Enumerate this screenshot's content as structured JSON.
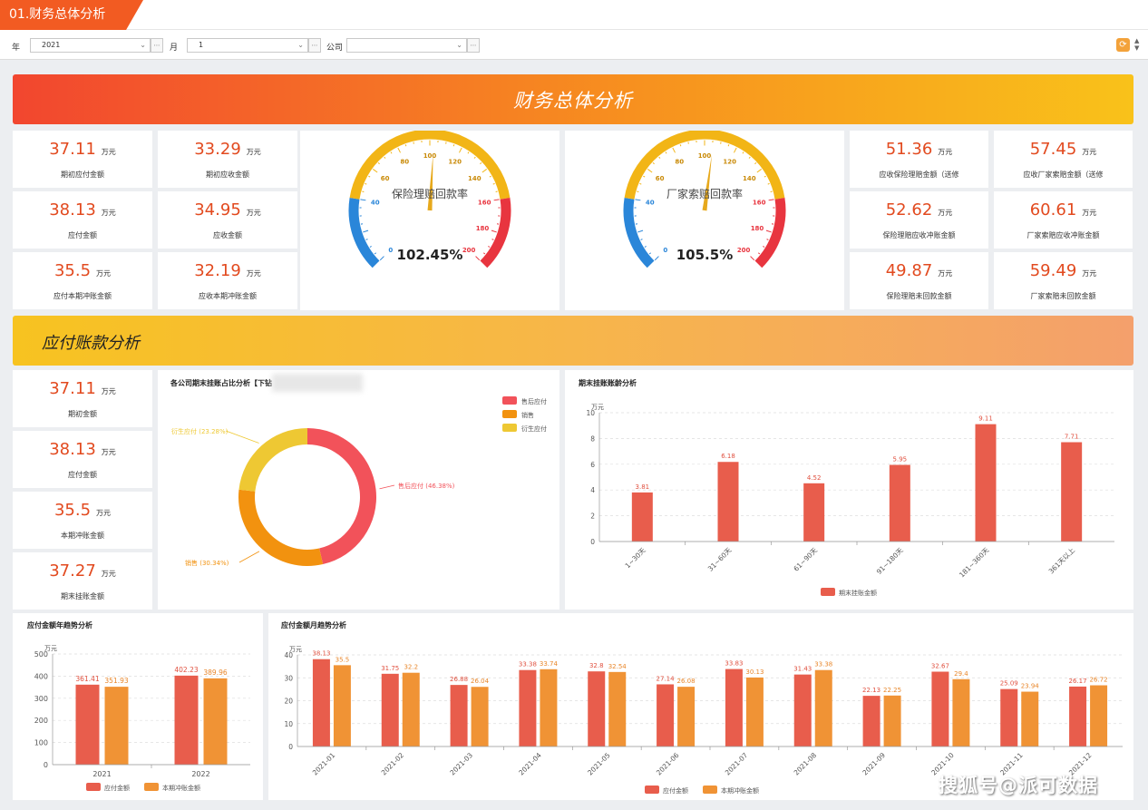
{
  "tab": {
    "label": "01.财务总体分析"
  },
  "filters": {
    "year_label": "年",
    "year_value": "2021",
    "month_label": "月",
    "month_value": "1",
    "company_label": "公司",
    "company_value": ""
  },
  "section1": {
    "title": "财务总体分析"
  },
  "section2": {
    "title": "应付账款分析"
  },
  "unit": "万元",
  "kpis_left": [
    {
      "value": "37.11",
      "label": "期初应付金额"
    },
    {
      "value": "33.29",
      "label": "期初应收金额"
    },
    {
      "value": "38.13",
      "label": "应付金额"
    },
    {
      "value": "34.95",
      "label": "应收金额"
    },
    {
      "value": "35.5",
      "label": "应付本期冲账金额"
    },
    {
      "value": "32.19",
      "label": "应收本期冲账金额"
    }
  ],
  "kpis_right": [
    {
      "value": "51.36",
      "label": "应收保险理赔金额（送修"
    },
    {
      "value": "57.45",
      "label": "应收厂家索赔金额（送修"
    },
    {
      "value": "52.62",
      "label": "保险理赔应收冲账金额"
    },
    {
      "value": "60.61",
      "label": "厂家索赔应收冲账金额"
    },
    {
      "value": "49.87",
      "label": "保险理赔未回款金额"
    },
    {
      "value": "59.49",
      "label": "厂家索赔未回款金额"
    }
  ],
  "kpis_payable": [
    {
      "value": "37.11",
      "label": "期初金额"
    },
    {
      "value": "38.13",
      "label": "应付金额"
    },
    {
      "value": "35.5",
      "label": "本期冲账金额"
    },
    {
      "value": "37.27",
      "label": "期末挂账金额"
    }
  ],
  "gauges": [
    {
      "title": "保险理赔回款率",
      "value": 102.45,
      "display": "102.45%",
      "ticks": [
        "0",
        "40",
        "60",
        "80",
        "100",
        "120",
        "140",
        "160",
        "180",
        "200"
      ]
    },
    {
      "title": "厂家索赔回款率",
      "value": 105.5,
      "display": "105.5%",
      "ticks": [
        "0",
        "40",
        "60",
        "80",
        "100",
        "120",
        "140",
        "160",
        "180",
        "200"
      ]
    }
  ],
  "colors": {
    "blue": "#2a86d9",
    "yellow": "#f2b516",
    "red": "#e8353f",
    "orange": "#e24a1f",
    "bar_red": "#e85d4c",
    "bar_orange": "#f09335"
  },
  "chart_data": [
    {
      "type": "pie",
      "title": "各公司期末挂账占比分析【下钻",
      "labels": [
        "售后应付",
        "销售",
        "衍生应付"
      ],
      "values": [
        46.38,
        30.34,
        23.28
      ],
      "data_labels": [
        "售后应付 (46.38%)",
        "销售 (30.34%)",
        "衍生应付 (23.28%)"
      ],
      "colors": [
        "#f2525a",
        "#f2920f",
        "#eec833"
      ],
      "legend": "top-right"
    },
    {
      "type": "bar",
      "title": "期末挂账账龄分析",
      "unit_label": "万元",
      "categories": [
        "1~30天",
        "31~60天",
        "61~90天",
        "91~180天",
        "181~360天",
        "361天以上"
      ],
      "series": [
        {
          "name": "期末挂账金额",
          "values": [
            3.81,
            6.18,
            4.52,
            5.95,
            9.11,
            7.71
          ]
        }
      ],
      "ylim": [
        0,
        10
      ],
      "yticks": [
        "0",
        "2",
        "4",
        "6",
        "8",
        "10"
      ],
      "legend": "bottom"
    },
    {
      "type": "bar",
      "title": "应付金额年趋势分析",
      "unit_label": "万元",
      "categories": [
        "2021",
        "2022"
      ],
      "series": [
        {
          "name": "应付金额",
          "values": [
            361.41,
            402.23
          ]
        },
        {
          "name": "本期冲账金额",
          "values": [
            351.93,
            389.96
          ]
        }
      ],
      "ylim": [
        0,
        500
      ],
      "yticks": [
        "0",
        "100",
        "200",
        "300",
        "400",
        "500"
      ],
      "legend": "bottom"
    },
    {
      "type": "bar",
      "title": "应付金额月趋势分析",
      "unit_label": "万元",
      "categories": [
        "2021-01",
        "2021-02",
        "2021-03",
        "2021-04",
        "2021-05",
        "2021-06",
        "2021-07",
        "2021-08",
        "2021-09",
        "2021-10",
        "2021-11",
        "2021-12"
      ],
      "series": [
        {
          "name": "应付金额",
          "values": [
            38.13,
            31.75,
            26.88,
            33.38,
            32.8,
            27.14,
            33.83,
            31.43,
            22.13,
            32.67,
            25.09,
            26.17
          ]
        },
        {
          "name": "本期冲账金额",
          "values": [
            35.5,
            32.2,
            26.04,
            33.74,
            32.54,
            26.08,
            30.13,
            33.38,
            22.25,
            29.4,
            23.94,
            26.72
          ]
        }
      ],
      "ylim": [
        0,
        40
      ],
      "yticks": [
        "0",
        "10",
        "20",
        "30",
        "40"
      ],
      "legend": "bottom"
    }
  ],
  "watermark": "搜狐号@派可数据"
}
